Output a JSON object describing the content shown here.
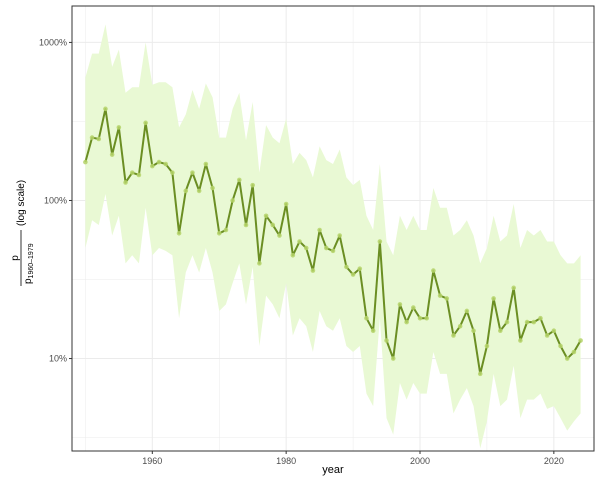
{
  "chart_data": {
    "type": "line",
    "xlabel": "year",
    "ylabel": {
      "numerator": "p",
      "denominator": "p",
      "denominator_subscript": "1960–1979",
      "suffix": "(log scale)"
    },
    "y_scale": "log",
    "xlim": [
      1948,
      2026
    ],
    "ylim": [
      2.6,
      1700
    ],
    "x_ticks": [
      1960,
      1980,
      2000,
      2020
    ],
    "y_ticks": [
      10,
      100,
      1000
    ],
    "y_tick_labels": [
      "10%",
      "100%",
      "1000%"
    ],
    "grid": true,
    "legend": "none",
    "colors": {
      "line": "#6b8e23",
      "points": "#b5d46a",
      "band": "#e9f9d4",
      "grid": "#ebebeb",
      "panel_border": "#333333"
    },
    "series": [
      {
        "x": [
          1950,
          1951,
          1952,
          1953,
          1954,
          1955,
          1956,
          1957,
          1958,
          1959,
          1960,
          1961,
          1962,
          1963,
          1964,
          1965,
          1966,
          1967,
          1968,
          1969,
          1970,
          1971,
          1972,
          1973,
          1974,
          1975,
          1976,
          1977,
          1978,
          1979,
          1980,
          1981,
          1982,
          1983,
          1984,
          1985,
          1986,
          1987,
          1988,
          1989,
          1990,
          1991,
          1992,
          1993,
          1994,
          1995,
          1996,
          1997,
          1998,
          1999,
          2000,
          2001,
          2002,
          2003,
          2004,
          2005,
          2006,
          2007,
          2008,
          2009,
          2010,
          2011,
          2012,
          2013,
          2014,
          2015,
          2016,
          2017,
          2018,
          2019,
          2020,
          2021,
          2022,
          2023,
          2024
        ],
        "y": [
          175,
          250,
          245,
          380,
          195,
          290,
          130,
          150,
          145,
          310,
          165,
          175,
          170,
          150,
          62,
          115,
          150,
          115,
          170,
          120,
          62,
          65,
          100,
          135,
          70,
          125,
          40,
          80,
          70,
          60,
          95,
          45,
          55,
          50,
          36,
          65,
          50,
          48,
          60,
          38,
          34,
          37,
          18,
          15,
          55,
          13,
          10,
          22,
          17,
          21,
          18,
          18,
          36,
          25,
          24,
          14,
          16,
          20,
          15,
          8,
          12,
          24,
          15,
          17,
          28,
          13,
          17,
          17,
          18,
          14,
          15,
          12,
          10,
          11,
          13
        ]
      }
    ],
    "band": {
      "x": [
        1950,
        1951,
        1952,
        1953,
        1954,
        1955,
        1956,
        1957,
        1958,
        1959,
        1960,
        1961,
        1962,
        1963,
        1964,
        1965,
        1966,
        1967,
        1968,
        1969,
        1970,
        1971,
        1972,
        1973,
        1974,
        1975,
        1976,
        1977,
        1978,
        1979,
        1980,
        1981,
        1982,
        1983,
        1984,
        1985,
        1986,
        1987,
        1988,
        1989,
        1990,
        1991,
        1992,
        1993,
        1994,
        1995,
        1996,
        1997,
        1998,
        1999,
        2000,
        2001,
        2002,
        2003,
        2004,
        2005,
        2006,
        2007,
        2008,
        2009,
        2010,
        2011,
        2012,
        2013,
        2014,
        2015,
        2016,
        2017,
        2018,
        2019,
        2020,
        2021,
        2022,
        2023,
        2024
      ],
      "upper": [
        600,
        850,
        850,
        1300,
        700,
        900,
        480,
        520,
        520,
        1000,
        540,
        560,
        560,
        520,
        290,
        350,
        500,
        380,
        550,
        450,
        250,
        250,
        380,
        480,
        240,
        420,
        150,
        300,
        250,
        230,
        330,
        170,
        200,
        180,
        140,
        220,
        180,
        170,
        210,
        140,
        125,
        135,
        80,
        65,
        170,
        55,
        45,
        80,
        65,
        80,
        65,
        65,
        120,
        90,
        90,
        60,
        65,
        75,
        60,
        40,
        50,
        80,
        55,
        60,
        95,
        50,
        65,
        60,
        65,
        55,
        55,
        45,
        40,
        40,
        45
      ],
      "lower": [
        50,
        75,
        70,
        110,
        60,
        80,
        40,
        45,
        40,
        90,
        45,
        50,
        48,
        45,
        18,
        35,
        45,
        35,
        50,
        35,
        20,
        22,
        30,
        40,
        22,
        38,
        12,
        25,
        22,
        18,
        30,
        14,
        18,
        16,
        11,
        20,
        16,
        15,
        18,
        12,
        11,
        12,
        6,
        5,
        18,
        4.2,
        3.3,
        7,
        5.5,
        7,
        6,
        6,
        11,
        8,
        8,
        4.5,
        5.5,
        6.5,
        5,
        2.7,
        4,
        8,
        5,
        5.5,
        9,
        4.2,
        5.5,
        5.5,
        6,
        4.8,
        5,
        4.2,
        3.5,
        4,
        4.5
      ]
    }
  }
}
